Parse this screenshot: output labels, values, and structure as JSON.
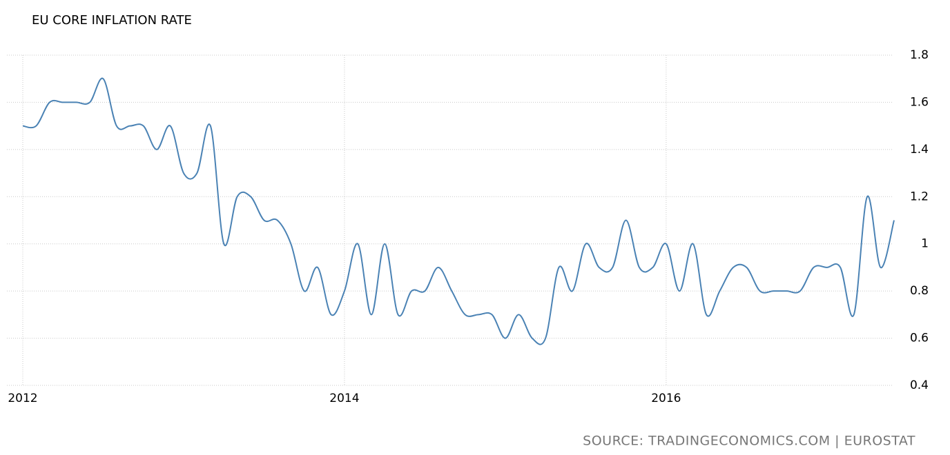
{
  "chart_data": {
    "type": "line",
    "title": "EU CORE INFLATION RATE",
    "source": "SOURCE: TRADINGECONOMICS.COM | EUROSTAT",
    "x": [
      2012,
      2012.083,
      2012.167,
      2012.25,
      2012.333,
      2012.417,
      2012.5,
      2012.583,
      2012.667,
      2012.75,
      2012.833,
      2012.917,
      2013,
      2013.083,
      2013.167,
      2013.25,
      2013.333,
      2013.417,
      2013.5,
      2013.583,
      2013.667,
      2013.75,
      2013.833,
      2013.917,
      2014,
      2014.083,
      2014.167,
      2014.25,
      2014.333,
      2014.417,
      2014.5,
      2014.583,
      2014.667,
      2014.75,
      2014.833,
      2014.917,
      2015,
      2015.083,
      2015.167,
      2015.25,
      2015.333,
      2015.417,
      2015.5,
      2015.583,
      2015.667,
      2015.75,
      2015.833,
      2015.917,
      2016,
      2016.083,
      2016.167,
      2016.25,
      2016.333,
      2016.417,
      2016.5,
      2016.583,
      2016.667,
      2016.75,
      2016.833,
      2016.917,
      2017,
      2017.083,
      2017.167,
      2017.25,
      2017.333,
      2017.417
    ],
    "series": [
      {
        "color": "#4a82b4",
        "values": [
          1.5,
          1.5,
          1.6,
          1.6,
          1.6,
          1.6,
          1.7,
          1.5,
          1.5,
          1.5,
          1.4,
          1.5,
          1.3,
          1.3,
          1.5,
          1.0,
          1.2,
          1.2,
          1.1,
          1.1,
          1.0,
          0.8,
          0.9,
          0.7,
          0.8,
          1.0,
          0.7,
          1.0,
          0.7,
          0.8,
          0.8,
          0.9,
          0.8,
          0.7,
          0.7,
          0.7,
          0.6,
          0.7,
          0.6,
          0.6,
          0.9,
          0.8,
          1.0,
          0.9,
          0.9,
          1.1,
          0.9,
          0.9,
          1.0,
          0.8,
          1.0,
          0.7,
          0.8,
          0.9,
          0.9,
          0.8,
          0.8,
          0.8,
          0.8,
          0.9,
          0.9,
          0.9,
          0.7,
          1.2,
          0.9,
          1.1
        ]
      }
    ],
    "xlim": [
      2012,
      2017.417
    ],
    "xticks": [
      2012,
      2014,
      2016
    ],
    "ylim": [
      0.4,
      1.8
    ],
    "yticks": [
      0.4,
      0.6,
      0.8,
      1,
      1.2,
      1.4,
      1.6,
      1.8
    ],
    "grid": true
  }
}
